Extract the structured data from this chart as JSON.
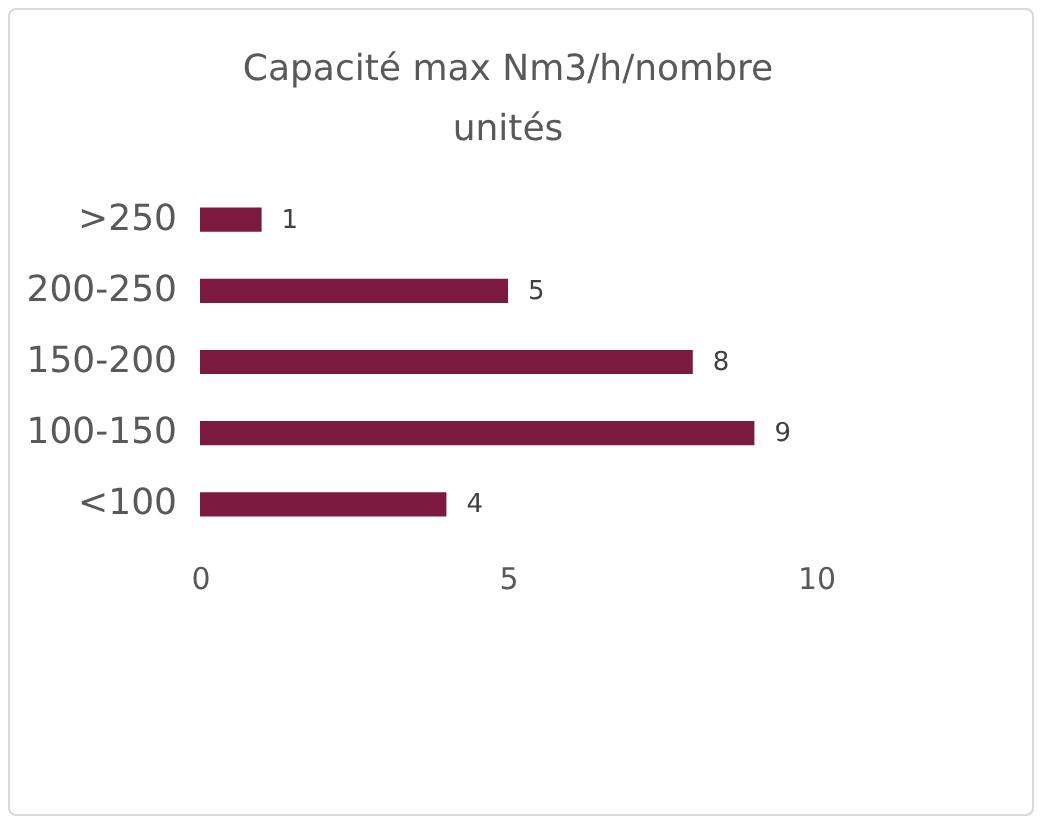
{
  "chart_data": {
    "type": "bar",
    "orientation": "horizontal",
    "title": "Capacité max Nm3/h/nombre unités",
    "categories": [
      ">250",
      "200-250",
      "150-200",
      "100-150",
      "<100"
    ],
    "values": [
      1,
      5,
      8,
      9,
      4
    ],
    "color": "#7b1a3e",
    "data_labels": true,
    "grid": false,
    "xlim": [
      0,
      10
    ],
    "xticks": [
      0,
      5,
      10
    ]
  }
}
